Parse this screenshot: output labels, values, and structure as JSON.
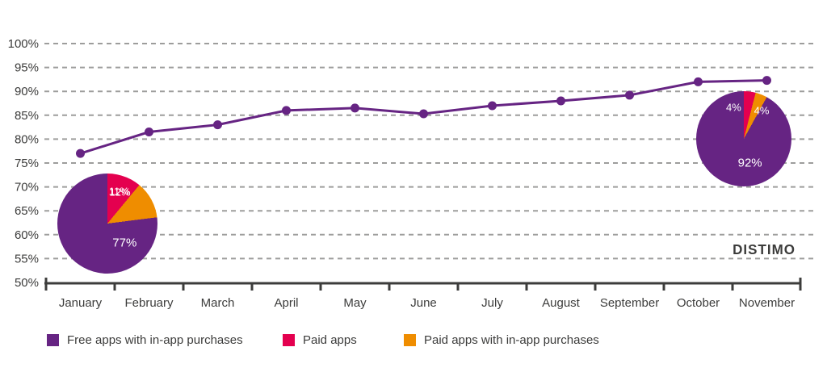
{
  "branding": {
    "logo": "DISTIMO"
  },
  "colors": {
    "purple": "#662483",
    "pink": "#e4004f",
    "orange": "#ef8d00",
    "axis_text": "#3c3c3b",
    "gridline": "#9d9d9c",
    "background": "#ffffff",
    "pie_label_text": "#ffffff"
  },
  "legend": {
    "items": [
      {
        "label": "Free apps with in-app purchases",
        "color": "#662483"
      },
      {
        "label": "Paid apps",
        "color": "#e4004f"
      },
      {
        "label": "Paid apps with in-app purchases",
        "color": "#ef8d00"
      }
    ]
  },
  "y_axis_labels": [
    "100%",
    "95%",
    "90%",
    "85%",
    "80%",
    "75%",
    "70%",
    "65%",
    "60%",
    "55%",
    "50%"
  ],
  "chart_data": [
    {
      "type": "line",
      "title": "",
      "categories": [
        "January",
        "February",
        "March",
        "April",
        "May",
        "June",
        "July",
        "August",
        "September",
        "October",
        "November"
      ],
      "series": [
        {
          "name": "Free apps with in-app purchases",
          "color": "#662483",
          "values": [
            77,
            81.5,
            83,
            86,
            86.5,
            85.3,
            87,
            88,
            89.2,
            92,
            92.3
          ]
        }
      ],
      "ylim": [
        50,
        100
      ],
      "ytick_step": 5,
      "ytick_suffix": "%",
      "grid": "horizontal-dashed",
      "legend_position": "bottom"
    },
    {
      "type": "pie",
      "anchor_month": "January",
      "slices": [
        {
          "name": "Paid apps",
          "value": 11,
          "label": "11%",
          "color": "#e4004f"
        },
        {
          "name": "Paid apps with in-app purchases",
          "value": 12,
          "label": "12%",
          "color": "#ef8d00"
        },
        {
          "name": "Free apps with in-app purchases",
          "value": 77,
          "label": "77%",
          "color": "#662483"
        }
      ]
    },
    {
      "type": "pie",
      "anchor_month": "November",
      "slices": [
        {
          "name": "Paid apps",
          "value": 4,
          "label": "4%",
          "color": "#e4004f"
        },
        {
          "name": "Paid apps with in-app purchases",
          "value": 4,
          "label": "4%",
          "color": "#ef8d00"
        },
        {
          "name": "Free apps with in-app purchases",
          "value": 92,
          "label": "92%",
          "color": "#662483"
        }
      ]
    }
  ]
}
